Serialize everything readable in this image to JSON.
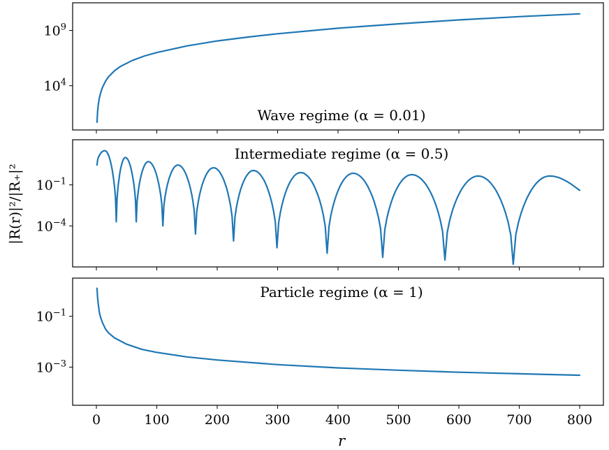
{
  "figure": {
    "ylabel": "|R(r)|²/|R₊|²",
    "xlabel": "r"
  },
  "chart_data": [
    {
      "type": "line",
      "title": "Wave regime (α = 0.01)",
      "yscale": "log",
      "x_range": [
        0,
        800
      ],
      "ylim_log10": [
        0.0,
        11.5
      ],
      "yticks": [
        {
          "exp": 4,
          "label": "10⁴"
        },
        {
          "exp": 9,
          "label": "10⁹"
        }
      ],
      "series": [
        {
          "color": "#1f77b4",
          "x": [
            1,
            2,
            3,
            4,
            5,
            7,
            10,
            15,
            20,
            30,
            40,
            60,
            80,
            100,
            150,
            200,
            250,
            300,
            400,
            500,
            600,
            700,
            800
          ],
          "log10_y": [
            0.7,
            1.65,
            2.2,
            2.6,
            2.9,
            3.35,
            3.85,
            4.4,
            4.8,
            5.35,
            5.75,
            6.3,
            6.7,
            7.0,
            7.6,
            8.05,
            8.4,
            8.7,
            9.2,
            9.6,
            9.95,
            10.25,
            10.5
          ]
        }
      ]
    },
    {
      "type": "line",
      "title": "Intermediate regime (α = 0.5)",
      "yscale": "log",
      "x_range": [
        0,
        800
      ],
      "ylim_log10": [
        -7.0,
        2.3
      ],
      "yticks": [
        {
          "exp": -4,
          "label": "10⁻⁴"
        },
        {
          "exp": -1,
          "label": "10⁻¹"
        }
      ],
      "series": [
        {
          "color": "#1f77b4",
          "x_start": 1,
          "x_end": 800,
          "minima": [
            {
              "x": 33,
              "log10_y": -3.7
            },
            {
              "x": 66,
              "log10_y": -3.7
            },
            {
              "x": 110,
              "log10_y": -4.0
            },
            {
              "x": 164,
              "log10_y": -4.6
            },
            {
              "x": 227,
              "log10_y": -5.1
            },
            {
              "x": 299,
              "log10_y": -5.6
            },
            {
              "x": 382,
              "log10_y": -6.0
            },
            {
              "x": 474,
              "log10_y": -6.3
            },
            {
              "x": 577,
              "log10_y": -6.5
            },
            {
              "x": 690,
              "log10_y": -6.8
            }
          ],
          "maxima": [
            {
              "x": 14,
              "log10_y": 1.5
            },
            {
              "x": 48,
              "log10_y": 1.0
            },
            {
              "x": 86,
              "log10_y": 0.7
            },
            {
              "x": 135,
              "log10_y": 0.45
            },
            {
              "x": 194,
              "log10_y": 0.25
            },
            {
              "x": 260,
              "log10_y": 0.05
            },
            {
              "x": 338,
              "log10_y": -0.1
            },
            {
              "x": 425,
              "log10_y": -0.15
            },
            {
              "x": 522,
              "log10_y": -0.25
            },
            {
              "x": 632,
              "log10_y": -0.35
            },
            {
              "x": 750,
              "log10_y": -0.35
            }
          ],
          "start_log10_y": 0.45,
          "end_log10_y": -1.4
        }
      ]
    },
    {
      "type": "line",
      "title": "Particle regime (α = 1)",
      "yscale": "log",
      "x_range": [
        0,
        800
      ],
      "ylim_log10": [
        -4.5,
        0.5
      ],
      "yticks": [
        {
          "exp": -3,
          "label": "10⁻³"
        },
        {
          "exp": -1,
          "label": "10⁻¹"
        }
      ],
      "series": [
        {
          "color": "#1f77b4",
          "x": [
            1,
            2,
            3,
            5,
            7,
            10,
            15,
            20,
            30,
            50,
            75,
            100,
            150,
            200,
            300,
            400,
            500,
            600,
            700,
            800
          ],
          "log10_y": [
            0.1,
            -0.25,
            -0.5,
            -0.85,
            -1.05,
            -1.25,
            -1.5,
            -1.65,
            -1.85,
            -2.1,
            -2.3,
            -2.42,
            -2.6,
            -2.72,
            -2.9,
            -3.03,
            -3.12,
            -3.2,
            -3.26,
            -3.32
          ]
        }
      ]
    }
  ],
  "x_axis": {
    "ticks": [
      0,
      100,
      200,
      300,
      400,
      500,
      600,
      700,
      800
    ],
    "tick_labels": [
      "0",
      "100",
      "200",
      "300",
      "400",
      "500",
      "600",
      "700",
      "800"
    ]
  }
}
